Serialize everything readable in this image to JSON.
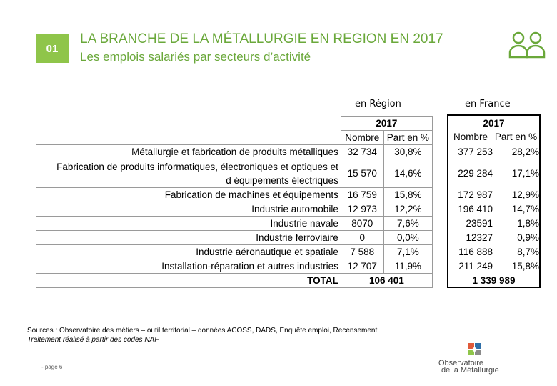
{
  "header": {
    "badge": "01",
    "title": "LA BRANCHE DE LA MÉTALLURGIE EN REGION EN 2017",
    "subtitle": "Les emplois salariés par secteurs d’activité"
  },
  "colors": {
    "accent": "#6aa83a",
    "badge_bg": "#8fc54a"
  },
  "icons": {
    "top_right": "people-icon",
    "logo": "observatoire-logo"
  },
  "region": {
    "label": "en Région",
    "year": "2017",
    "col_count": "Nombre",
    "col_share": "Part en %",
    "rows": [
      {
        "sector": "Métallurgie et fabrication de produits métalliques",
        "count": "32 734",
        "share": "30,8%"
      },
      {
        "sector_line1": "Fabrication de produits informatiques, électroniques et optiques et",
        "sector_line2": "d équipements électriques",
        "count": "15 570",
        "share": "14,6%"
      },
      {
        "sector": "Fabrication de machines et équipements",
        "count": "16 759",
        "share": "15,8%"
      },
      {
        "sector": "Industrie automobile",
        "count": "12 973",
        "share": "12,2%"
      },
      {
        "sector": "Industrie navale",
        "count": "8070",
        "share": "7,6%"
      },
      {
        "sector": "Industrie ferroviaire",
        "count": "0",
        "share": "0,0%"
      },
      {
        "sector": "Industrie aéronautique et spatiale",
        "count": "7 588",
        "share": "7,1%"
      },
      {
        "sector": "Installation-réparation et autres industries",
        "count": "12 707",
        "share": "11,9%"
      }
    ],
    "total_label": "TOTAL",
    "total_count": "106 401"
  },
  "france": {
    "label": "en France",
    "year": "2017",
    "col_count": "Nombre",
    "col_share": "Part en %",
    "rows": [
      {
        "count": "377 253",
        "share": "28,2%"
      },
      {
        "count": "229 284",
        "share": "17,1%"
      },
      {
        "count": "172 987",
        "share": "12,9%"
      },
      {
        "count": "196 410",
        "share": "14,7%"
      },
      {
        "count": "23591",
        "share": "1,8%"
      },
      {
        "count": "12327",
        "share": "0,9%"
      },
      {
        "count": "116 888",
        "share": "8,7%"
      },
      {
        "count": "211 249",
        "share": "15,8%"
      }
    ],
    "total_count": "1 339 989"
  },
  "footer": {
    "sources": "Sources : Observatoire des métiers – outil territorial – données ACOSS, DADS, Enquête emploi, Recensement",
    "treatment": "Traitement réalisé à partir des codes NAF",
    "page": "- page 6",
    "logo_line1": "Observatoire",
    "logo_line2": "de la Métallurgie"
  }
}
